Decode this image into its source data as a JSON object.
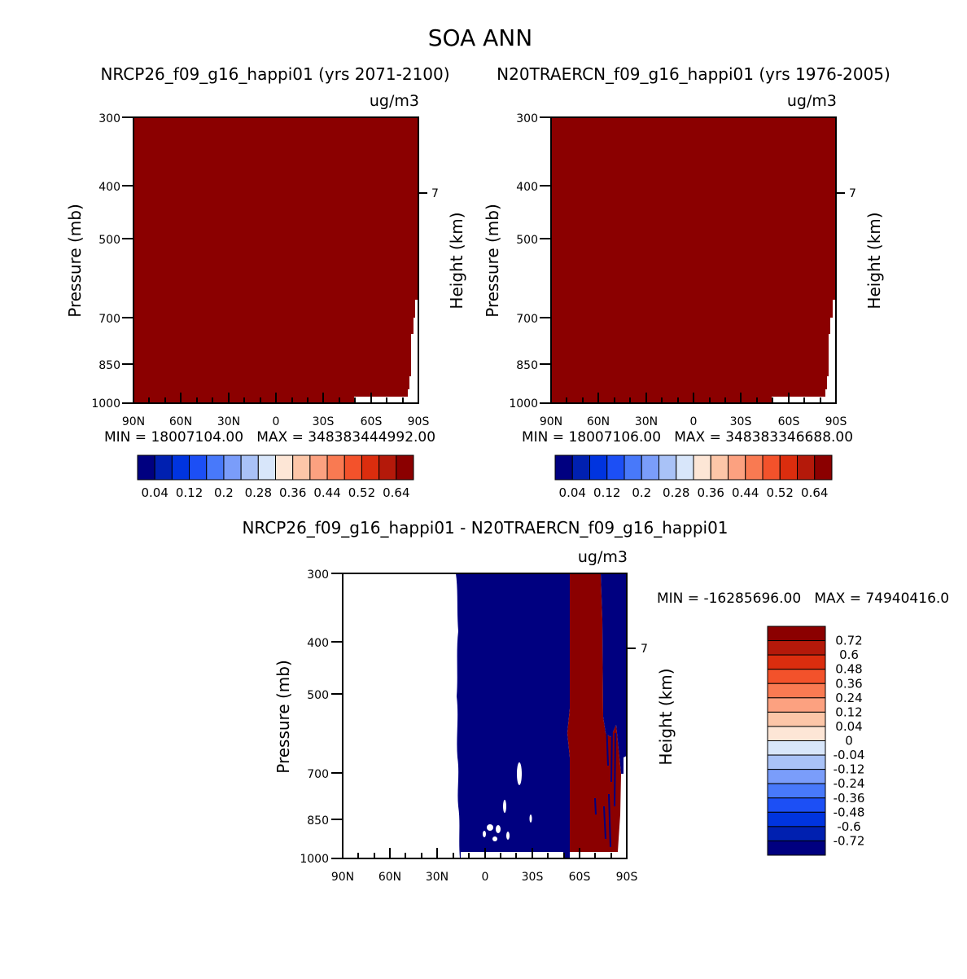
{
  "main_title": "SOA ANN",
  "colors": {
    "dark_red": "#8b0000",
    "navy": "#000080",
    "white": "#ffffff",
    "axis": "#000000"
  },
  "chart_data": [
    {
      "type": "heatmap",
      "title": "NRCP26_f09_g16_happi01 (yrs 2071-2100)",
      "units": "ug/m3",
      "ylabel": "Pressure (mb)",
      "ylabel_right": "Height (km)",
      "x_ticks": [
        "90N",
        "60N",
        "30N",
        "0",
        "30S",
        "60S",
        "90S"
      ],
      "y_ticks": [
        300,
        400,
        500,
        700,
        850,
        1000
      ],
      "right_ticks": [
        "7"
      ],
      "xlim": [
        90,
        -90
      ],
      "ylim": [
        300,
        1000
      ],
      "stats": "MIN = 18007104.00   MAX = 348383444992.00",
      "fill": "#8b0000",
      "colorbar": {
        "labels": [
          "0.04",
          "0.12",
          "0.2",
          "0.28",
          "0.36",
          "0.44",
          "0.52",
          "0.64"
        ],
        "colors": [
          "#000080",
          "#0020b0",
          "#0034df",
          "#1c4ff5",
          "#4879fa",
          "#7a9dfa",
          "#a9c2f7",
          "#d8e6fa",
          "#fde6d6",
          "#fcc6a8",
          "#fca180",
          "#f97a52",
          "#f3522b",
          "#db2d0e",
          "#b4190a",
          "#8b0000"
        ]
      }
    },
    {
      "type": "heatmap",
      "title": "N20TRAERCN_f09_g16_happi01 (yrs 1976-2005)",
      "units": "ug/m3",
      "ylabel": "Pressure (mb)",
      "ylabel_right": "Height (km)",
      "x_ticks": [
        "90N",
        "60N",
        "30N",
        "0",
        "30S",
        "60S",
        "90S"
      ],
      "y_ticks": [
        300,
        400,
        500,
        700,
        850,
        1000
      ],
      "right_ticks": [
        "7"
      ],
      "xlim": [
        90,
        -90
      ],
      "ylim": [
        300,
        1000
      ],
      "stats": "MIN = 18007106.00   MAX = 348383346688.00",
      "fill": "#8b0000",
      "colorbar": {
        "labels": [
          "0.04",
          "0.12",
          "0.2",
          "0.28",
          "0.36",
          "0.44",
          "0.52",
          "0.64"
        ],
        "colors": [
          "#000080",
          "#0020b0",
          "#0034df",
          "#1c4ff5",
          "#4879fa",
          "#7a9dfa",
          "#a9c2f7",
          "#d8e6fa",
          "#fde6d6",
          "#fcc6a8",
          "#fca180",
          "#f97a52",
          "#f3522b",
          "#db2d0e",
          "#b4190a",
          "#8b0000"
        ]
      }
    },
    {
      "type": "heatmap",
      "title": "NRCP26_f09_g16_happi01 - N20TRAERCN_f09_g16_happi01",
      "units": "ug/m3",
      "ylabel": "Pressure (mb)",
      "ylabel_right": "Height (km)",
      "x_ticks": [
        "90N",
        "60N",
        "30N",
        "0",
        "30S",
        "60S",
        "90S"
      ],
      "y_ticks": [
        300,
        400,
        500,
        700,
        850,
        1000
      ],
      "right_ticks": [
        "7"
      ],
      "xlim": [
        90,
        -90
      ],
      "ylim": [
        300,
        1000
      ],
      "stats": "MIN = -16285696.00   MAX = 74940416.0",
      "regions": [
        {
          "value": "none",
          "lat_from": 90,
          "lat_to": 18,
          "color": "#ffffff"
        },
        {
          "value": "<= -0.72",
          "lat_from": 18,
          "lat_to": -53,
          "color": "#000080"
        },
        {
          "value": ">= 0.72",
          "lat_from": -53,
          "lat_to": -74,
          "color": "#8b0000"
        },
        {
          "value": "<= -0.72",
          "lat_from": -74,
          "lat_to": -90,
          "color": "#000080"
        }
      ],
      "colorbar": {
        "labels": [
          "0.72",
          "0.6",
          "0.48",
          "0.36",
          "0.24",
          "0.12",
          "0.04",
          "0",
          "-0.04",
          "-0.12",
          "-0.24",
          "-0.36",
          "-0.48",
          "-0.6",
          "-0.72"
        ],
        "colors": [
          "#8b0000",
          "#b4190a",
          "#db2d0e",
          "#f3522b",
          "#f97a52",
          "#fca180",
          "#fcc6a8",
          "#fde6d6",
          "#d8e6fa",
          "#a9c2f7",
          "#7a9dfa",
          "#4879fa",
          "#1c4ff5",
          "#0034df",
          "#0020b0",
          "#000080"
        ]
      }
    }
  ]
}
